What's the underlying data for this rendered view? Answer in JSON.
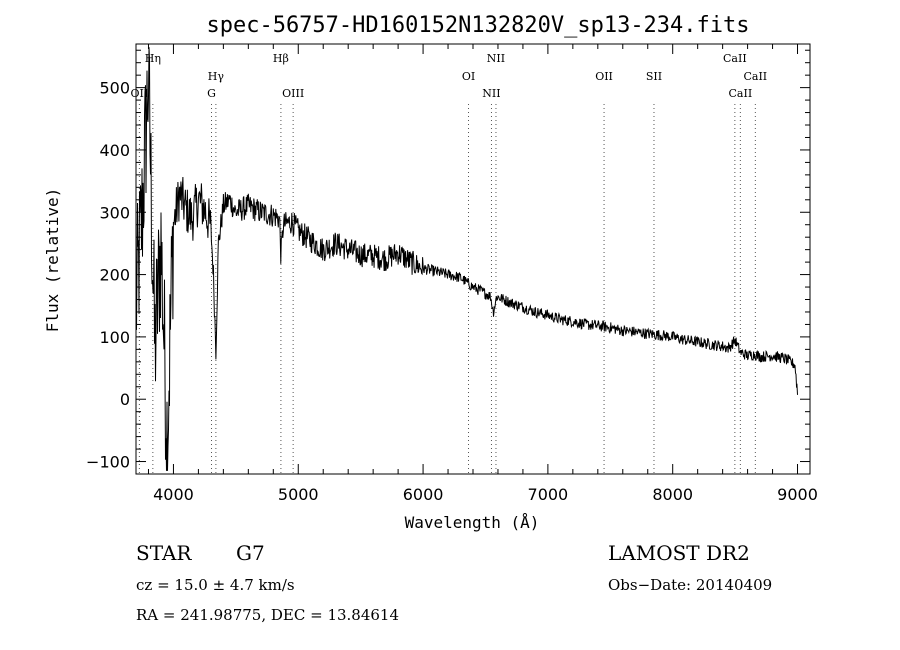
{
  "chart_data": {
    "type": "line",
    "title": "spec-56757-HD160152N132820V_sp13-234.fits",
    "xlabel": "Wavelength (Å)",
    "ylabel": "Flux (relative)",
    "xlim": [
      3700,
      9100
    ],
    "ylim": [
      -120,
      570
    ],
    "xticks": [
      4000,
      5000,
      6000,
      7000,
      8000,
      9000
    ],
    "xtick_labels": [
      "4000",
      "5000",
      "6000",
      "7000",
      "8000",
      "9000"
    ],
    "yticks": [
      -100,
      0,
      100,
      200,
      300,
      400,
      500
    ],
    "ytick_labels": [
      "−100",
      "0",
      "100",
      "200",
      "300",
      "400",
      "500"
    ],
    "grid": false,
    "lines": [
      {
        "label": "Hη",
        "x": 3835,
        "row": 0
      },
      {
        "label": "OII",
        "x": 3727,
        "row": 2
      },
      {
        "label": "Hγ",
        "x": 4340,
        "row": 1
      },
      {
        "label": "G",
        "x": 4305,
        "row": 2
      },
      {
        "label": "Hβ",
        "x": 4861,
        "row": 0
      },
      {
        "label": "OIII",
        "x": 4959,
        "row": 2
      },
      {
        "label": "OI",
        "x": 6364,
        "row": 1
      },
      {
        "label": "NII",
        "x": 6584,
        "row": 0
      },
      {
        "label": "NII",
        "x": 6548,
        "row": 2
      },
      {
        "label": "OII",
        "x": 7450,
        "row": 1
      },
      {
        "label": "SII",
        "x": 7850,
        "row": 1
      },
      {
        "label": "CaII",
        "x": 8498,
        "row": 0
      },
      {
        "label": "CaII",
        "x": 8662,
        "row": 1
      },
      {
        "label": "CaII",
        "x": 8542,
        "row": 2
      }
    ],
    "series": [
      {
        "color": "#000000",
        "x": [
          3700,
          3750,
          3800,
          3850,
          3900,
          3950,
          4000,
          4050,
          4100,
          4150,
          4200,
          4250,
          4300,
          4320,
          4340,
          4360,
          4400,
          4450,
          4500,
          4600,
          4700,
          4800,
          4850,
          4861,
          4880,
          4950,
          5000,
          5100,
          5200,
          5300,
          5400,
          5500,
          5600,
          5700,
          5800,
          5900,
          6000,
          6100,
          6200,
          6300,
          6400,
          6500,
          6540,
          6563,
          6590,
          6700,
          6800,
          6900,
          7000,
          7100,
          7200,
          7300,
          7400,
          7500,
          7600,
          7700,
          7800,
          7900,
          8000,
          8100,
          8200,
          8300,
          8400,
          8450,
          8500,
          8542,
          8600,
          8662,
          8700,
          8800,
          8900,
          8980,
          9000
        ],
        "y": [
          150,
          300,
          520,
          80,
          250,
          -60,
          280,
          330,
          305,
          290,
          320,
          305,
          275,
          200,
          80,
          250,
          310,
          320,
          300,
          310,
          300,
          295,
          290,
          230,
          280,
          285,
          270,
          255,
          240,
          250,
          240,
          232,
          230,
          225,
          235,
          220,
          210,
          205,
          200,
          195,
          180,
          170,
          165,
          140,
          165,
          155,
          148,
          140,
          135,
          128,
          125,
          120,
          118,
          115,
          110,
          108,
          105,
          103,
          100,
          95,
          92,
          88,
          85,
          82,
          95,
          75,
          70,
          72,
          68,
          70,
          65,
          55,
          10
        ]
      }
    ]
  },
  "footer": {
    "object_type": "STAR",
    "subclass": "G7",
    "survey": "LAMOST DR2",
    "redshift": "cz = 15.0 ± 4.7 km/s",
    "obs_date": "Obs−Date: 20140409",
    "coords": "RA = 241.98775, DEC =  13.84614"
  }
}
